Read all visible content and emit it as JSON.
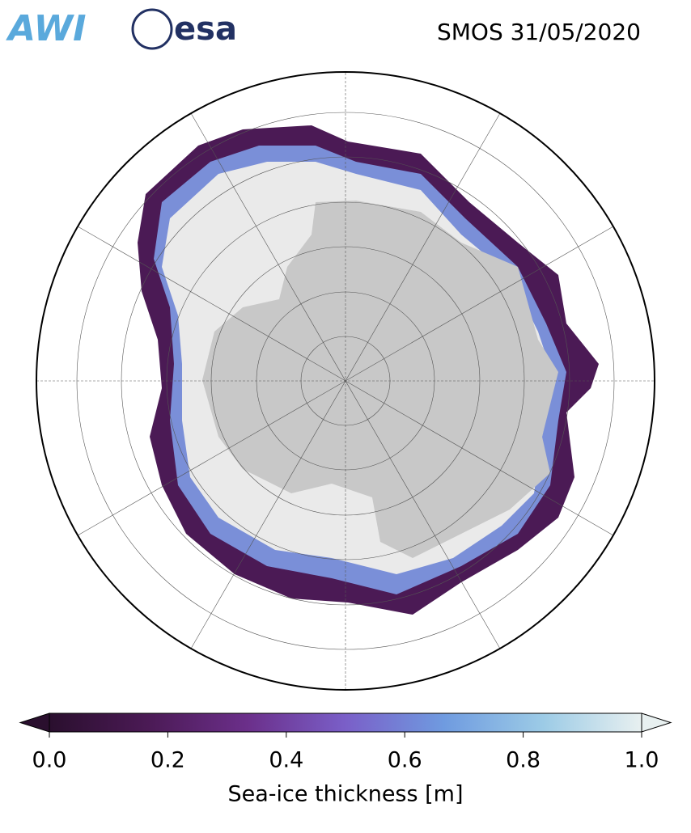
{
  "header": {
    "logos": [
      "AWI",
      "esa"
    ],
    "title": "SMOS 31/05/2020"
  },
  "colorbar": {
    "label": "Sea-ice thickness [m]",
    "lim": [
      0,
      1
    ],
    "ticks": [
      {
        "value": 0,
        "label": "0.0"
      },
      {
        "value": 0.2,
        "label": "0.2"
      },
      {
        "value": 0.4,
        "label": "0.4"
      },
      {
        "value": 0.6,
        "label": "0.6"
      },
      {
        "value": 0.8,
        "label": "0.8"
      },
      {
        "value": 1,
        "label": "1.0"
      }
    ],
    "colors": [
      "#2a0f2e",
      "#4b1a55",
      "#6b2f8a",
      "#7a5fc8",
      "#6f9be0",
      "#9ccbe6",
      "#e8f0f0"
    ]
  }
}
